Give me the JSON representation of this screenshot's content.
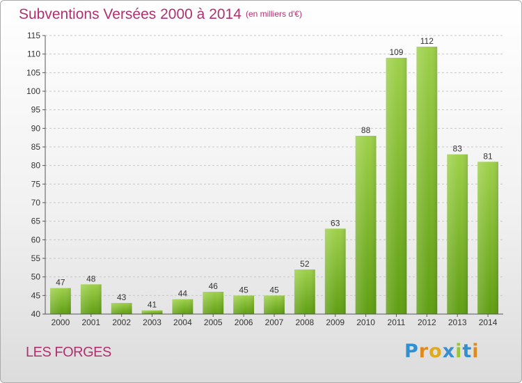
{
  "header": {
    "title": "Subventions Versées 2000 à 2014",
    "subtitle": "(en milliers d'€)"
  },
  "footer": {
    "city": "LES FORGES",
    "logo_letters": [
      "P",
      "r",
      "o",
      "x",
      "i",
      "t",
      "i"
    ]
  },
  "colors": {
    "title": "#b03070",
    "bar_light": "#9ed04a",
    "bar_dark": "#5f9e12",
    "grid": "#c8c8c8",
    "axis": "#555555"
  },
  "chart_data": {
    "type": "bar",
    "categories": [
      "2000",
      "2001",
      "2002",
      "2003",
      "2004",
      "2005",
      "2006",
      "2007",
      "2008",
      "2009",
      "2010",
      "2011",
      "2012",
      "2013",
      "2014"
    ],
    "values": [
      47,
      48,
      43,
      41,
      44,
      46,
      45,
      45,
      52,
      63,
      88,
      109,
      112,
      83,
      81
    ],
    "ylim": [
      40,
      115
    ],
    "yticks": [
      40,
      45,
      50,
      55,
      60,
      65,
      70,
      75,
      80,
      85,
      90,
      95,
      100,
      105,
      110,
      115
    ],
    "grid": true,
    "data_labels": true
  }
}
